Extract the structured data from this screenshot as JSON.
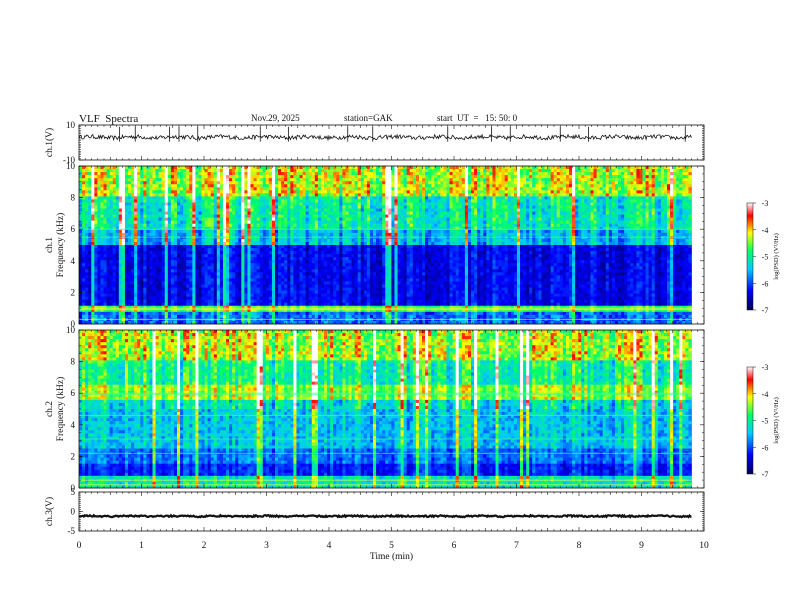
{
  "header": {
    "title": "VLF  Spectra",
    "date": "Nov.29, 2025",
    "station": "station=GAK",
    "start": "start  UT  =   15: 50: 0"
  },
  "chart_data": {
    "type": "heatmap",
    "x": {
      "label": "Time  (min)",
      "range": [
        0,
        10
      ],
      "ticks": [
        "0",
        "1",
        "2",
        "3",
        "4",
        "5",
        "6",
        "7",
        "8",
        "9",
        "10"
      ],
      "data_end": 9.8
    },
    "panels": [
      {
        "name": "ch1-waveform",
        "type": "line",
        "ylabel": "ch.1(V)",
        "ylim": [
          -10,
          10
        ],
        "yticks": [
          "10",
          "-10"
        ],
        "baseline": 3,
        "noise_amplitude": 1.2,
        "spikes": [
          0.65,
          0.9,
          1.45,
          1.6,
          1.9,
          2.9,
          3.35,
          4.3,
          4.7,
          5.9,
          6.6,
          6.9,
          7.7,
          8.15,
          9.7
        ]
      },
      {
        "name": "ch1-spectrogram",
        "type": "heatmap",
        "ylabel": "ch.1\nFrequency  (kHz)",
        "ylim": [
          0,
          10
        ],
        "yticks": [
          "0",
          "2",
          "4",
          "6",
          "8",
          "10"
        ]
      },
      {
        "name": "ch2-spectrogram",
        "type": "heatmap",
        "ylabel": "ch.2\nFrequency  (kHz)",
        "ylim": [
          0,
          10
        ],
        "yticks": [
          "0",
          "2",
          "4",
          "6",
          "8",
          "10"
        ]
      },
      {
        "name": "ch3-waveform",
        "type": "line",
        "ylabel": "ch.3(V)",
        "ylim": [
          -5,
          5
        ],
        "yticks": [
          "5",
          "0",
          "-5"
        ],
        "baseline": -1.2,
        "noise_amplitude": 0.2
      }
    ],
    "colorbar": {
      "label": "log(PSD) (V²/Hz)",
      "range": [
        -7,
        -3
      ],
      "ticks": [
        "-3",
        "-4",
        "-5",
        "-6",
        "-7"
      ],
      "colors": [
        "#000050",
        "#0000ff",
        "#00ccff",
        "#00ff66",
        "#ffff00",
        "#ff0000",
        "#ffffff"
      ]
    }
  }
}
